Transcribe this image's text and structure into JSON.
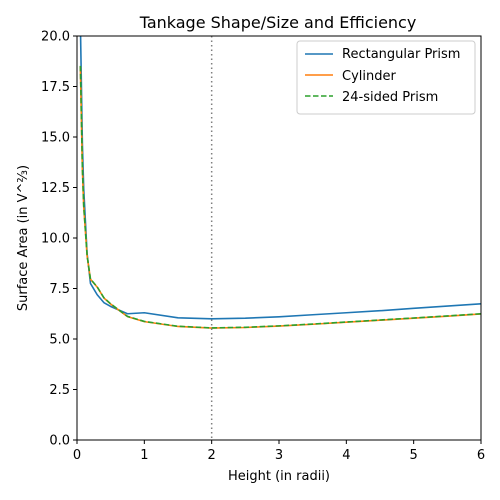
{
  "chart_data": {
    "type": "line",
    "title": "Tankage Shape/Size and Efficiency",
    "xlabel": "Height (in radii)",
    "ylabel": "Surface Area (in V^⅔)",
    "xlim": [
      0,
      6
    ],
    "ylim": [
      0,
      20
    ],
    "xticks": [
      "0",
      "1",
      "2",
      "3",
      "4",
      "5",
      "6"
    ],
    "yticks": [
      "0.0",
      "2.5",
      "5.0",
      "7.5",
      "10.0",
      "12.5",
      "15.0",
      "17.5",
      "20.0"
    ],
    "grid": false,
    "legend_position": "top-right",
    "vertical_line": {
      "x": 2,
      "style": "dotted",
      "color": "#7f7f7f"
    },
    "series": [
      {
        "name": "Rectangular Prism",
        "color": "#1f77b4",
        "style": "solid",
        "x": [
          0.05,
          0.08,
          0.1,
          0.15,
          0.2,
          0.3,
          0.4,
          0.5,
          0.75,
          1,
          1.5,
          2,
          2.5,
          3,
          3.5,
          4,
          4.5,
          5,
          5.5,
          6
        ],
        "y": [
          20.67,
          14.65,
          12.43,
          9.23,
          7.75,
          7.19,
          6.8,
          6.61,
          6.25,
          6.3,
          6.05,
          6.0,
          6.03,
          6.1,
          6.2,
          6.3,
          6.4,
          6.52,
          6.63,
          6.74
        ]
      },
      {
        "name": "Cylinder",
        "color": "#ff7f0e",
        "style": "solid",
        "x": [
          0.05,
          0.08,
          0.1,
          0.15,
          0.2,
          0.3,
          0.4,
          0.5,
          0.75,
          1,
          1.5,
          2,
          2.5,
          3,
          3.5,
          4,
          4.5,
          5,
          5.5,
          6
        ],
        "y": [
          18.49,
          13.4,
          11.55,
          9.12,
          7.96,
          7.57,
          7.03,
          6.73,
          6.11,
          5.86,
          5.62,
          5.54,
          5.57,
          5.64,
          5.73,
          5.83,
          5.93,
          6.03,
          6.13,
          6.24
        ]
      },
      {
        "name": "24-sided Prism",
        "color": "#2ca02c",
        "style": "dashed",
        "x": [
          0.05,
          0.08,
          0.1,
          0.15,
          0.2,
          0.3,
          0.4,
          0.5,
          0.75,
          1,
          1.5,
          2,
          2.5,
          3,
          3.5,
          4,
          4.5,
          5,
          5.5,
          6
        ],
        "y": [
          18.52,
          13.42,
          11.57,
          9.13,
          7.97,
          7.58,
          7.04,
          6.74,
          6.12,
          5.87,
          5.63,
          5.55,
          5.58,
          5.65,
          5.74,
          5.84,
          5.94,
          6.04,
          6.14,
          6.25
        ]
      }
    ]
  }
}
